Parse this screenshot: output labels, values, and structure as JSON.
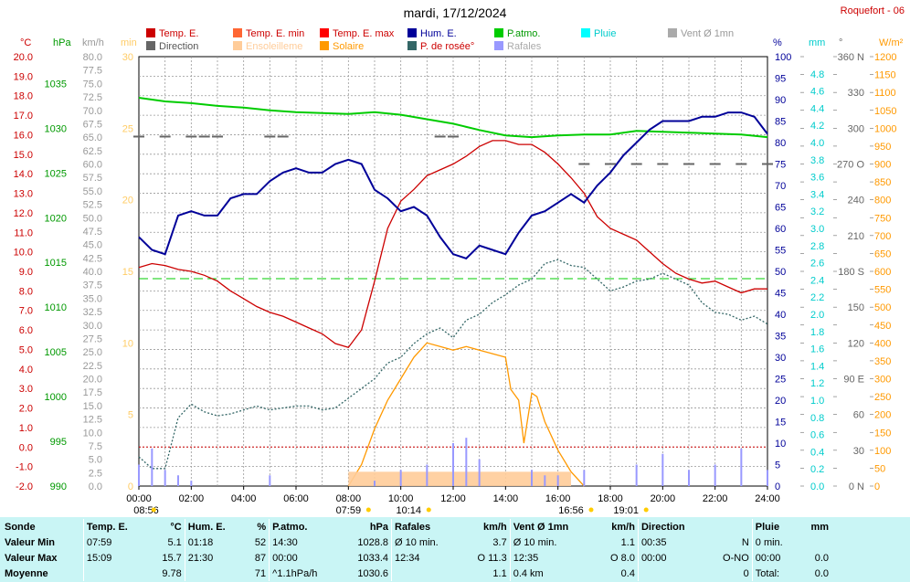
{
  "header": {
    "title": "mardi, 17/12/2024",
    "station": "Roquefort - 06"
  },
  "legend": [
    {
      "label": "Temp. E.",
      "color": "#cc0000"
    },
    {
      "label": "Temp. E. min",
      "color": "#ff6633"
    },
    {
      "label": "Temp. E. max",
      "color": "#ff0000"
    },
    {
      "label": "Hum. E.",
      "color": "#000099"
    },
    {
      "label": "P.atmo.",
      "color": "#00cc00"
    },
    {
      "label": "Pluie",
      "color": "#00cccc"
    },
    {
      "label": "Vent Ø 1mn",
      "color": "#999999"
    },
    {
      "label": "Direction",
      "color": "#666666"
    },
    {
      "label": "Ensoleilleme",
      "color": "#ffcc99"
    },
    {
      "label": "Solaire",
      "color": "#ff9900"
    },
    {
      "label": "P. de rosée°",
      "color": "#336666"
    },
    {
      "label": "Rafales",
      "color": "#9999ff"
    }
  ],
  "chart_data": {
    "type": "line",
    "x_ticks": [
      "00:00",
      "02:00",
      "04:00",
      "06:00",
      "08:00",
      "10:00",
      "12:00",
      "14:00",
      "16:00",
      "18:00",
      "20:00",
      "22:00",
      "24:00"
    ],
    "axes": {
      "temp_c": {
        "unit": "°C",
        "color": "#cc0000",
        "ylim": [
          -2,
          20
        ],
        "ticks": [
          "20.0",
          "19.0",
          "18.0",
          "17.0",
          "16.0",
          "15.0",
          "14.0",
          "13.0",
          "12.0",
          "11.0",
          "10.0",
          "9.0",
          "8.0",
          "7.0",
          "6.0",
          "5.0",
          "4.0",
          "3.0",
          "2.0",
          "1.0",
          "0.0",
          "-1.0",
          "-2.0"
        ]
      },
      "pressure_hpa": {
        "unit": "hPa",
        "color": "#009900",
        "ylim": [
          990,
          1038
        ],
        "ticks": [
          "1035",
          "1030",
          "1025",
          "1020",
          "1015",
          "1010",
          "1005",
          "1000",
          "995",
          "990"
        ]
      },
      "wind_kmh": {
        "unit": "km/h",
        "color": "#999999",
        "ylim": [
          0,
          80
        ],
        "ticks": [
          "80.0",
          "77.5",
          "75.0",
          "72.5",
          "70.0",
          "67.5",
          "65.0",
          "62.5",
          "60.0",
          "57.5",
          "55.0",
          "52.5",
          "50.0",
          "47.5",
          "45.0",
          "42.5",
          "40.0",
          "37.5",
          "35.0",
          "32.5",
          "30.0",
          "27.5",
          "25.0",
          "22.5",
          "20.0",
          "17.5",
          "15.0",
          "12.5",
          "10.0",
          "7.5",
          "5.0",
          "2.5",
          "0.0"
        ]
      },
      "sun_min": {
        "unit": "min",
        "color": "#ffcc66",
        "ylim": [
          0,
          30
        ],
        "ticks": [
          "30",
          "25",
          "20",
          "15",
          "10",
          "5",
          "0"
        ]
      },
      "humidity_pct": {
        "unit": "%",
        "color": "#000099",
        "ylim": [
          0,
          100
        ],
        "ticks": [
          "100",
          "95",
          "90",
          "85",
          "80",
          "75",
          "70",
          "65",
          "60",
          "55",
          "50",
          "45",
          "40",
          "35",
          "30",
          "25",
          "20",
          "15",
          "10",
          "5",
          "0"
        ]
      },
      "rain_mm": {
        "unit": "mm",
        "color": "#00cccc",
        "ylim": [
          0,
          5
        ],
        "ticks": [
          "4.8",
          "4.6",
          "4.4",
          "4.2",
          "4.0",
          "3.8",
          "3.6",
          "3.4",
          "3.2",
          "3.0",
          "2.8",
          "2.6",
          "2.4",
          "2.2",
          "2.0",
          "1.8",
          "1.6",
          "1.4",
          "1.2",
          "1.0",
          "0.8",
          "0.6",
          "0.4",
          "0.2",
          "0.0"
        ]
      },
      "direction_deg": {
        "unit": "°",
        "color": "#666666",
        "ylim": [
          0,
          360
        ],
        "ticks": [
          "360 N",
          "330",
          "300",
          "270 O",
          "240",
          "210",
          "180 S",
          "150",
          "120",
          "90 E",
          "60",
          "30",
          "0 N"
        ]
      },
      "solar_wm2": {
        "unit": "W/m²",
        "color": "#ff9900",
        "ylim": [
          0,
          1200
        ],
        "ticks": [
          "1200",
          "1150",
          "1100",
          "1050",
          "1000",
          "950",
          "900",
          "850",
          "800",
          "750",
          "700",
          "650",
          "600",
          "550",
          "500",
          "450",
          "400",
          "350",
          "300",
          "250",
          "200",
          "150",
          "100",
          "50",
          "0"
        ]
      }
    },
    "series": [
      {
        "name": "Temp. E.",
        "axis": "temp_c",
        "color": "#cc0000",
        "x": [
          0,
          0.5,
          1,
          1.5,
          2,
          2.5,
          3,
          3.5,
          4,
          4.5,
          5,
          5.5,
          6,
          6.5,
          7,
          7.5,
          8,
          8.5,
          9,
          9.5,
          10,
          10.5,
          11,
          11.5,
          12,
          12.5,
          13,
          13.5,
          14,
          14.5,
          15,
          15.5,
          16,
          16.5,
          17,
          17.5,
          18,
          18.5,
          19,
          19.5,
          20,
          20.5,
          21,
          21.5,
          22,
          22.5,
          23,
          23.5,
          24
        ],
        "y": [
          9.2,
          9.4,
          9.3,
          9.1,
          9.0,
          8.8,
          8.5,
          8.0,
          7.6,
          7.2,
          6.9,
          6.7,
          6.4,
          6.1,
          5.8,
          5.3,
          5.1,
          6.0,
          8.5,
          11.2,
          12.6,
          13.2,
          13.9,
          14.2,
          14.5,
          14.9,
          15.4,
          15.7,
          15.7,
          15.5,
          15.5,
          15.1,
          14.5,
          13.8,
          13.0,
          11.8,
          11.2,
          10.9,
          10.6,
          10.0,
          9.4,
          8.9,
          8.6,
          8.4,
          8.5,
          8.2,
          7.9,
          8.1,
          8.1
        ]
      },
      {
        "name": "P.atmo.",
        "axis": "pressure_hpa",
        "color": "#00cc00",
        "x": [
          0,
          1,
          2,
          3,
          4,
          5,
          6,
          7,
          8,
          9,
          10,
          11,
          12,
          13,
          14,
          15,
          16,
          17,
          18,
          19,
          20,
          21,
          22,
          23,
          24
        ],
        "y": [
          1033.4,
          1033.0,
          1032.8,
          1032.5,
          1032.3,
          1032.0,
          1031.8,
          1031.7,
          1031.6,
          1031.8,
          1031.5,
          1031.0,
          1030.5,
          1029.8,
          1029.2,
          1029.0,
          1029.2,
          1029.3,
          1029.3,
          1029.7,
          1029.6,
          1029.5,
          1029.4,
          1029.3,
          1029.0
        ]
      },
      {
        "name": "Hum. E.",
        "axis": "humidity_pct",
        "color": "#000099",
        "x": [
          0,
          0.5,
          1,
          1.5,
          2,
          2.5,
          3,
          3.5,
          4,
          4.5,
          5,
          5.5,
          6,
          6.5,
          7,
          7.5,
          8,
          8.5,
          9,
          9.5,
          10,
          10.5,
          11,
          11.5,
          12,
          12.5,
          13,
          13.5,
          14,
          14.5,
          15,
          15.5,
          16,
          16.5,
          17,
          17.5,
          18,
          18.5,
          19,
          19.5,
          20,
          20.5,
          21,
          21.5,
          22,
          22.5,
          23,
          23.5,
          24
        ],
        "y": [
          58,
          55,
          54,
          63,
          64,
          63,
          63,
          67,
          68,
          68,
          71,
          73,
          74,
          73,
          73,
          75,
          76,
          75,
          69,
          67,
          64,
          65,
          63,
          58,
          54,
          53,
          56,
          55,
          54,
          59,
          63,
          64,
          66,
          68,
          66,
          70,
          73,
          77,
          80,
          83,
          85,
          85,
          85,
          86,
          86,
          87,
          87,
          86,
          82
        ]
      },
      {
        "name": "P. de rosée°",
        "axis": "temp_c",
        "color": "#336666",
        "x": [
          0,
          0.5,
          1,
          1.5,
          2,
          2.5,
          3,
          3.5,
          4,
          4.5,
          5,
          5.5,
          6,
          6.5,
          7,
          7.5,
          8,
          8.5,
          9,
          9.5,
          10,
          10.5,
          11,
          11.5,
          12,
          12.5,
          13,
          13.5,
          14,
          14.5,
          15,
          15.5,
          16,
          16.5,
          17,
          17.5,
          18,
          18.5,
          19,
          19.5,
          20,
          20.5,
          21,
          21.5,
          22,
          22.5,
          23,
          23.5,
          24
        ],
        "y": [
          -0.5,
          -1.1,
          -1.1,
          1.5,
          2.2,
          1.8,
          1.6,
          1.7,
          1.9,
          2.1,
          1.9,
          2.0,
          2.1,
          2.1,
          1.9,
          2.0,
          2.5,
          3.0,
          3.5,
          4.3,
          4.6,
          5.3,
          5.8,
          6.1,
          5.6,
          6.5,
          6.8,
          7.4,
          7.8,
          8.3,
          8.6,
          9.4,
          9.6,
          9.3,
          9.2,
          8.6,
          8.0,
          8.2,
          8.5,
          8.6,
          8.9,
          8.6,
          8.3,
          7.4,
          6.9,
          6.8,
          6.5,
          6.7,
          6.3
        ]
      },
      {
        "name": "Solaire",
        "axis": "solar_wm2",
        "color": "#ff9900",
        "x": [
          8.0,
          8.5,
          9,
          9.5,
          10,
          10.5,
          11,
          11.5,
          12,
          12.5,
          13,
          13.5,
          14,
          14.2,
          14.5,
          14.7,
          15,
          15.2,
          15.5,
          16,
          16.5,
          17
        ],
        "y": [
          0,
          60,
          160,
          240,
          300,
          360,
          400,
          390,
          380,
          390,
          380,
          370,
          360,
          270,
          240,
          120,
          260,
          250,
          180,
          100,
          40,
          0
        ]
      },
      {
        "name": "Ensoleilleme",
        "axis": "sun_min",
        "color": "#ffcc99",
        "x": [
          8.0,
          16.5
        ],
        "y": [
          1,
          1
        ]
      },
      {
        "name": "Direction",
        "axis": "direction_deg",
        "color": "#666666",
        "x": [
          0,
          1,
          2,
          2.5,
          3,
          5,
          5.5,
          11.5,
          12,
          17,
          18,
          19,
          20,
          21,
          22,
          23,
          24
        ],
        "y": [
          293,
          293,
          293,
          293,
          293,
          293,
          293,
          293,
          293,
          270,
          270,
          270,
          270,
          270,
          270,
          270,
          270
        ]
      },
      {
        "name": "Rafales",
        "axis": "wind_kmh",
        "color": "#9999ff",
        "x": [
          0,
          0.5,
          1,
          1.5,
          2,
          5,
          9,
          10,
          11,
          12,
          12.5,
          13,
          15,
          15.5,
          16,
          17,
          19,
          20,
          21,
          22,
          23,
          24
        ],
        "y": [
          4,
          7,
          3,
          2,
          1,
          2,
          1,
          3,
          4,
          8,
          9,
          5,
          3,
          2,
          2,
          3,
          4,
          6,
          3,
          4,
          7,
          3
        ]
      }
    ],
    "reference_lines": [
      {
        "name": "freezing",
        "axis": "temp_c",
        "y": 0,
        "color": "#cc0000",
        "style": "dotted"
      },
      {
        "name": "humidity_50",
        "axis": "humidity_pct",
        "y": 48.3,
        "color": "#00cc00",
        "style": "dashed"
      }
    ],
    "bottom_markers": [
      {
        "text": "08:56",
        "x": -0.2
      },
      {
        "text": "07:59",
        "x": 8.0
      },
      {
        "text": "10:14",
        "x": 10.3
      },
      {
        "text": "16:56",
        "x": 16.5
      },
      {
        "text": "19:01",
        "x": 18.6
      }
    ]
  },
  "stats_table": {
    "headers": [
      {
        "label": "Sonde",
        "unit": ""
      },
      {
        "label": "Temp. E.",
        "unit": "°C"
      },
      {
        "label": "Hum. E.",
        "unit": "%"
      },
      {
        "label": "P.atmo.",
        "unit": "hPa"
      },
      {
        "label": "Rafales",
        "unit": "km/h"
      },
      {
        "label": "Vent Ø 1mn",
        "unit": "km/h"
      },
      {
        "label": "Direction",
        "unit": ""
      },
      {
        "label": "Pluie",
        "unit": "mm"
      }
    ],
    "rows": [
      {
        "label": "Valeur Min",
        "cells": [
          [
            "07:59",
            "5.1"
          ],
          [
            "01:18",
            "52"
          ],
          [
            "14:30",
            "1028.8"
          ],
          [
            "Ø 10 min.",
            "3.7"
          ],
          [
            "Ø 10 min.",
            "1.1"
          ],
          [
            "00:35",
            "N"
          ],
          [
            "0 min.",
            ""
          ]
        ]
      },
      {
        "label": "Valeur Max",
        "cells": [
          [
            "15:09",
            "15.7"
          ],
          [
            "21:30",
            "87"
          ],
          [
            "00:00",
            "1033.4"
          ],
          [
            "12:34",
            "O 11.3"
          ],
          [
            "12:35",
            "O 8.0"
          ],
          [
            "00:00",
            "O-NO"
          ],
          [
            "00:00",
            "0.0"
          ]
        ]
      },
      {
        "label": "Moyenne",
        "cells": [
          [
            "",
            "9.78"
          ],
          [
            "",
            "71"
          ],
          [
            "^1.1hPa/h",
            "1030.6"
          ],
          [
            "",
            "1.1"
          ],
          [
            "0.4 km",
            "0.4"
          ],
          [
            "",
            "0"
          ],
          [
            "Total:",
            "0.0"
          ]
        ]
      }
    ]
  }
}
